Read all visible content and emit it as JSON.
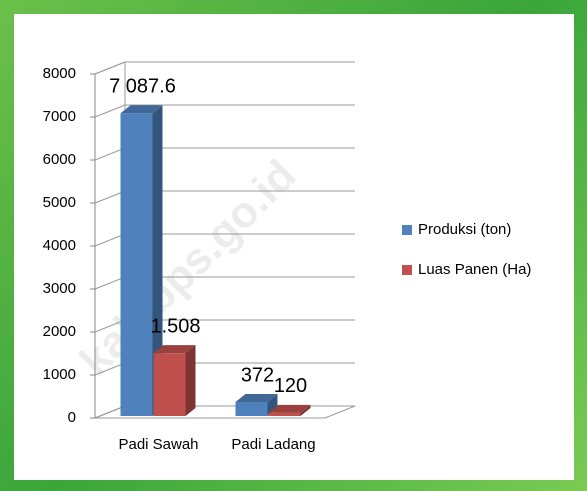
{
  "chart_data": {
    "type": "bar3d",
    "categories": [
      "Padi Sawah",
      "Padi Ladang"
    ],
    "series": [
      {
        "name": "Produksi (ton)",
        "color": "#4f81bd",
        "values": [
          7087.6,
          372
        ],
        "value_labels": [
          "7 087.6",
          "372"
        ]
      },
      {
        "name": "Luas Panen (Ha)",
        "color": "#c0504d",
        "values": [
          1508,
          120
        ],
        "value_labels": [
          "1.508",
          "120"
        ]
      }
    ],
    "ylim": [
      0,
      8000
    ],
    "yticks": [
      0,
      1000,
      2000,
      3000,
      4000,
      5000,
      6000,
      7000,
      8000
    ],
    "grid": true,
    "legend": "right",
    "watermark": "kab.bps.go.id"
  }
}
